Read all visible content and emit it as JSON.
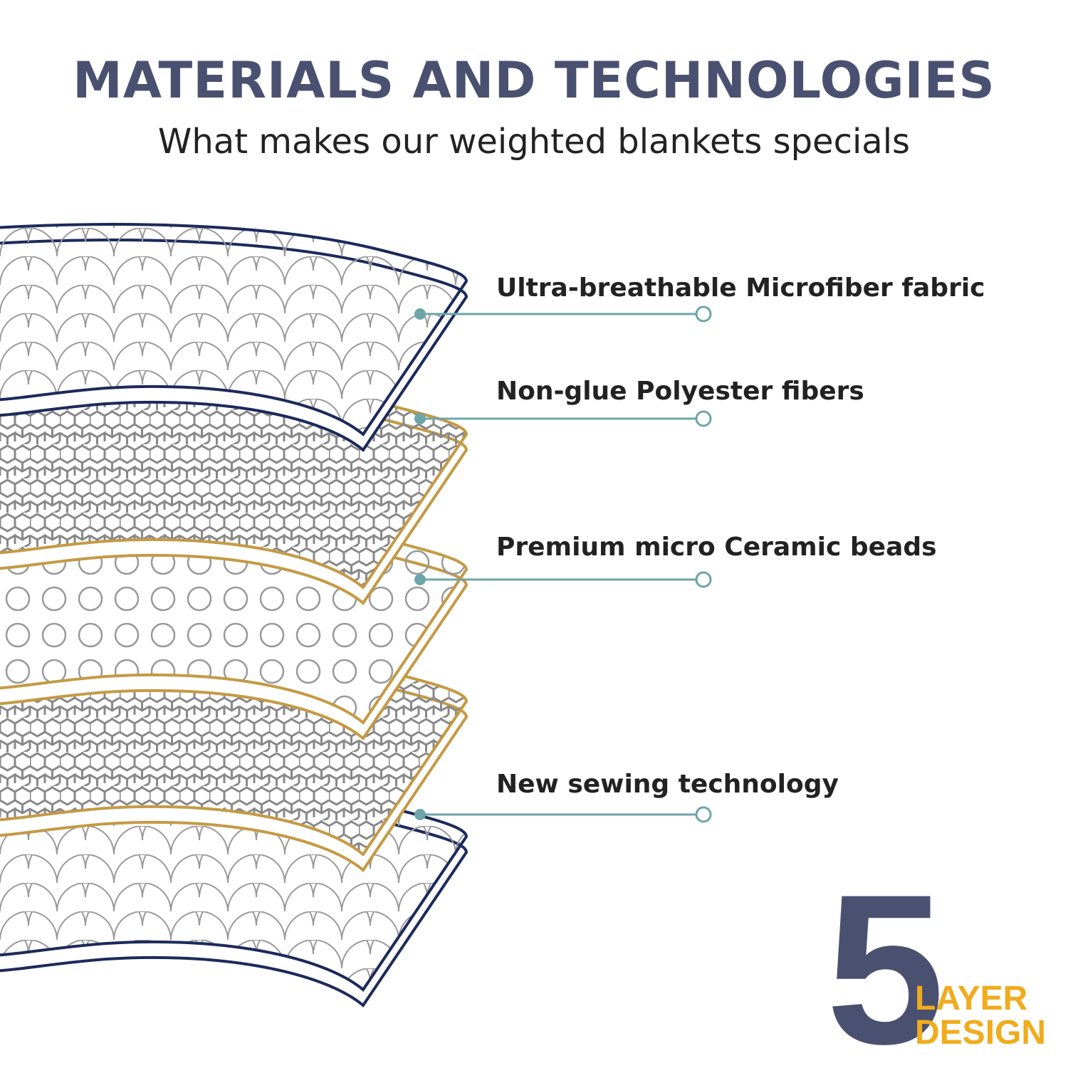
{
  "header": {
    "title": "MATERIALS AND TECHNOLOGIES",
    "subtitle": "What makes our weighted blankets specials"
  },
  "layers": [
    {
      "label": "Ultra-breathable Microfiber fabric"
    },
    {
      "label": "Non-glue Polyester fibers"
    },
    {
      "label": "Premium micro Ceramic beads"
    },
    {
      "label": "New sewing technology"
    }
  ],
  "badge": {
    "number": "5",
    "line1": "LAYER",
    "line2": "DESIGN"
  }
}
